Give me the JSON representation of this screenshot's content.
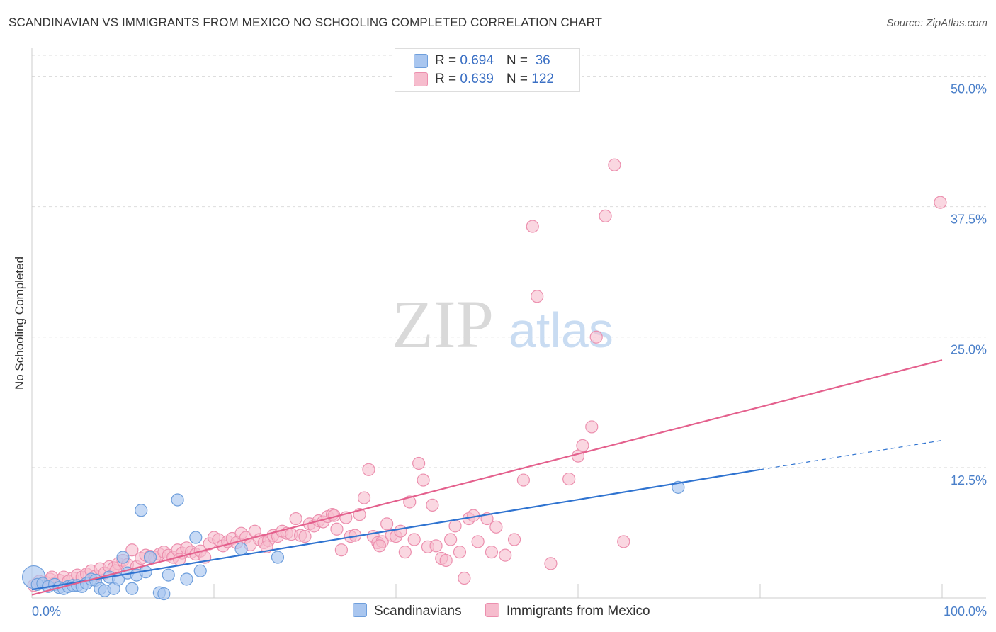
{
  "title": "SCANDINAVIAN VS IMMIGRANTS FROM MEXICO NO SCHOOLING COMPLETED CORRELATION CHART",
  "source": "Source: ZipAtlas.com",
  "watermark": {
    "zip": "ZIP",
    "atlas": "atlas"
  },
  "colors": {
    "blue_fill": "#a9c6ef",
    "blue_stroke": "#6f9fdc",
    "blue_line": "#2f73d0",
    "pink_fill": "#f6bccd",
    "pink_stroke": "#ec8fae",
    "pink_line": "#e4608d",
    "axis_text": "#4a7fc9",
    "grid": "#dddddd"
  },
  "legend": {
    "rows": [
      {
        "r_label": "R = ",
        "r_value": "0.694",
        "n_label": "N = ",
        "n_value": " 36"
      },
      {
        "r_label": "R = ",
        "r_value": "0.639",
        "n_label": "N = ",
        "n_value": "122"
      }
    ]
  },
  "bottom_legend": [
    "Scandinavians",
    "Immigrants from Mexico"
  ],
  "chart_data": {
    "type": "scatter",
    "xlabel": "",
    "ylabel": "No Schooling Completed",
    "xlim": [
      0,
      100
    ],
    "ylim": [
      0,
      52
    ],
    "x_tick_labels": [
      "0.0%",
      "100.0%"
    ],
    "y_ticks": [
      12.5,
      25.0,
      37.5,
      50.0
    ],
    "y_tick_labels": [
      "12.5%",
      "25.0%",
      "37.5%",
      "50.0%"
    ],
    "grid": true,
    "series": [
      {
        "name": "Scandinavians",
        "r": 0.694,
        "n": 36,
        "trend": {
          "x0": 0,
          "y0": 0.8,
          "x1": 80,
          "y1": 12.3,
          "dashed_to_x": 100,
          "dashed_to_y": 15.1
        },
        "points": [
          [
            0.2,
            2.0
          ],
          [
            0.6,
            1.3
          ],
          [
            1.2,
            1.4
          ],
          [
            1.8,
            1.1
          ],
          [
            2.5,
            1.3
          ],
          [
            3.0,
            1.0
          ],
          [
            3.5,
            0.9
          ],
          [
            4.0,
            1.1
          ],
          [
            4.5,
            1.2
          ],
          [
            5.0,
            1.2
          ],
          [
            5.5,
            1.1
          ],
          [
            6.0,
            1.4
          ],
          [
            6.5,
            1.8
          ],
          [
            7.0,
            1.7
          ],
          [
            7.5,
            0.9
          ],
          [
            8.0,
            0.7
          ],
          [
            8.5,
            2.0
          ],
          [
            9.0,
            0.9
          ],
          [
            9.5,
            1.8
          ],
          [
            10.0,
            3.9
          ],
          [
            10.5,
            2.4
          ],
          [
            11.0,
            0.9
          ],
          [
            11.5,
            2.2
          ],
          [
            12.0,
            8.4
          ],
          [
            12.5,
            2.5
          ],
          [
            13.0,
            3.9
          ],
          [
            14.0,
            0.5
          ],
          [
            14.5,
            0.4
          ],
          [
            15.0,
            2.2
          ],
          [
            16.0,
            9.4
          ],
          [
            17.0,
            1.8
          ],
          [
            18.0,
            5.8
          ],
          [
            18.5,
            2.6
          ],
          [
            23.0,
            4.7
          ],
          [
            27.0,
            3.9
          ],
          [
            71.0,
            10.6
          ]
        ]
      },
      {
        "name": "Immigrants from Mexico",
        "r": 0.639,
        "n": 122,
        "trend": {
          "x0": 0,
          "y0": 0.3,
          "x1": 100,
          "y1": 22.8
        },
        "points": [
          [
            0.2,
            1.2
          ],
          [
            0.8,
            1.6
          ],
          [
            1.5,
            1.5
          ],
          [
            2.0,
            1.8
          ],
          [
            2.5,
            1.4
          ],
          [
            3.0,
            1.7
          ],
          [
            3.5,
            2.0
          ],
          [
            4.0,
            1.6
          ],
          [
            4.5,
            1.9
          ],
          [
            5.0,
            2.2
          ],
          [
            5.5,
            2.0
          ],
          [
            6.0,
            2.3
          ],
          [
            6.5,
            2.6
          ],
          [
            7.0,
            2.1
          ],
          [
            7.5,
            2.8
          ],
          [
            8.0,
            2.4
          ],
          [
            8.5,
            3.0
          ],
          [
            9.0,
            2.9
          ],
          [
            9.5,
            3.3
          ],
          [
            10.0,
            3.6
          ],
          [
            10.5,
            3.2
          ],
          [
            11.0,
            4.6
          ],
          [
            11.5,
            3.0
          ],
          [
            12.0,
            3.8
          ],
          [
            12.5,
            4.1
          ],
          [
            13.0,
            4.0
          ],
          [
            13.5,
            3.9
          ],
          [
            14.0,
            4.2
          ],
          [
            14.5,
            4.4
          ],
          [
            15.0,
            4.1
          ],
          [
            15.5,
            3.9
          ],
          [
            16.0,
            4.6
          ],
          [
            16.5,
            4.3
          ],
          [
            17.0,
            4.8
          ],
          [
            17.5,
            4.4
          ],
          [
            18.0,
            4.2
          ],
          [
            18.5,
            4.5
          ],
          [
            19.5,
            5.2
          ],
          [
            20.0,
            5.8
          ],
          [
            20.5,
            5.6
          ],
          [
            21.0,
            5.0
          ],
          [
            21.5,
            5.4
          ],
          [
            22.0,
            5.7
          ],
          [
            22.5,
            5.3
          ],
          [
            23.0,
            6.2
          ],
          [
            23.5,
            5.8
          ],
          [
            24.0,
            5.1
          ],
          [
            24.5,
            6.4
          ],
          [
            25.0,
            5.6
          ],
          [
            25.5,
            5.3
          ],
          [
            26.0,
            5.5
          ],
          [
            26.5,
            6.0
          ],
          [
            27.0,
            5.9
          ],
          [
            27.5,
            6.4
          ],
          [
            28.0,
            6.2
          ],
          [
            28.5,
            6.1
          ],
          [
            29.0,
            7.6
          ],
          [
            29.5,
            6.0
          ],
          [
            30.0,
            5.9
          ],
          [
            30.5,
            7.1
          ],
          [
            31.0,
            6.9
          ],
          [
            31.5,
            7.4
          ],
          [
            32.0,
            7.3
          ],
          [
            32.5,
            7.8
          ],
          [
            33.0,
            8.0
          ],
          [
            33.5,
            6.6
          ],
          [
            34.0,
            4.6
          ],
          [
            34.5,
            7.7
          ],
          [
            35.0,
            5.9
          ],
          [
            35.5,
            6.0
          ],
          [
            36.0,
            8.0
          ],
          [
            36.5,
            9.6
          ],
          [
            37.0,
            12.3
          ],
          [
            37.5,
            5.9
          ],
          [
            38.0,
            5.3
          ],
          [
            38.5,
            5.4
          ],
          [
            39.0,
            7.1
          ],
          [
            39.5,
            6.0
          ],
          [
            40.0,
            5.9
          ],
          [
            40.5,
            6.4
          ],
          [
            41.0,
            4.4
          ],
          [
            41.5,
            9.2
          ],
          [
            42.0,
            5.6
          ],
          [
            42.5,
            12.9
          ],
          [
            43.0,
            11.3
          ],
          [
            43.5,
            4.9
          ],
          [
            44.0,
            8.9
          ],
          [
            45.0,
            3.8
          ],
          [
            45.5,
            3.6
          ],
          [
            46.0,
            5.6
          ],
          [
            46.5,
            6.9
          ],
          [
            47.0,
            4.4
          ],
          [
            47.5,
            1.9
          ],
          [
            48.0,
            7.6
          ],
          [
            48.5,
            7.9
          ],
          [
            49.0,
            5.4
          ],
          [
            50.0,
            7.6
          ],
          [
            50.5,
            4.4
          ],
          [
            51.0,
            6.8
          ],
          [
            52.0,
            4.1
          ],
          [
            53.0,
            5.6
          ],
          [
            54.0,
            11.3
          ],
          [
            55.0,
            35.6
          ],
          [
            55.5,
            28.9
          ],
          [
            57.0,
            3.3
          ],
          [
            59.0,
            11.4
          ],
          [
            60.0,
            13.6
          ],
          [
            60.5,
            14.6
          ],
          [
            61.5,
            16.4
          ],
          [
            62.0,
            25.0
          ],
          [
            63.0,
            36.6
          ],
          [
            64.0,
            41.5
          ],
          [
            65.0,
            5.4
          ],
          [
            99.8,
            37.9
          ],
          [
            2.2,
            2.0
          ],
          [
            9.2,
            2.6
          ],
          [
            16.2,
            3.7
          ],
          [
            19.0,
            3.9
          ],
          [
            25.8,
            4.9
          ],
          [
            33.2,
            7.9
          ],
          [
            38.2,
            5.0
          ],
          [
            44.4,
            5.0
          ]
        ]
      }
    ]
  }
}
